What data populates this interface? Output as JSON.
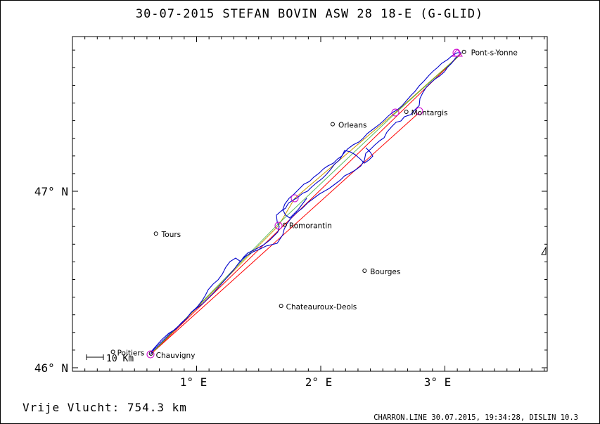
{
  "title": "30-07-2015   STEFAN BOVIN   ASW 28 18-E (G-GLID)",
  "x_axis_labels": [
    "1° E",
    "2° E",
    "3° E"
  ],
  "y_axis_labels": [
    "47° N",
    "46° N"
  ],
  "scale_bar_label": "10 Km",
  "cities": [
    {
      "name": "Pont-s-Yonne",
      "lon": 3.2,
      "lat": 47.79
    },
    {
      "name": "Montargis",
      "lon": 2.73,
      "lat": 47.45
    },
    {
      "name": "Orleans",
      "lon": 2.13,
      "lat": 47.38
    },
    {
      "name": "Romorantin",
      "lon": 1.74,
      "lat": 46.81
    },
    {
      "name": "Tours",
      "lon": 0.69,
      "lat": 46.76
    },
    {
      "name": "Bourges",
      "lon": 2.39,
      "lat": 46.55
    },
    {
      "name": "Chateauroux-Deols",
      "lon": 1.71,
      "lat": 46.35
    },
    {
      "name": "Poitiers",
      "lon": 0.34,
      "lat": 46.09
    },
    {
      "name": "Chauvigny",
      "lon": 0.65,
      "lat": 46.08
    }
  ],
  "footer": {
    "distance_label": "Vrije Vlucht:  754.3 km",
    "credit": "CHARRON.LINE 30.07.2015, 19:34:28, DISLIN 10.3"
  },
  "colors": {
    "track": "#0000cc",
    "course": "#ff0000",
    "legs": "#cc9900",
    "turnpoints": "#cc00cc",
    "axes": "#000000"
  }
}
